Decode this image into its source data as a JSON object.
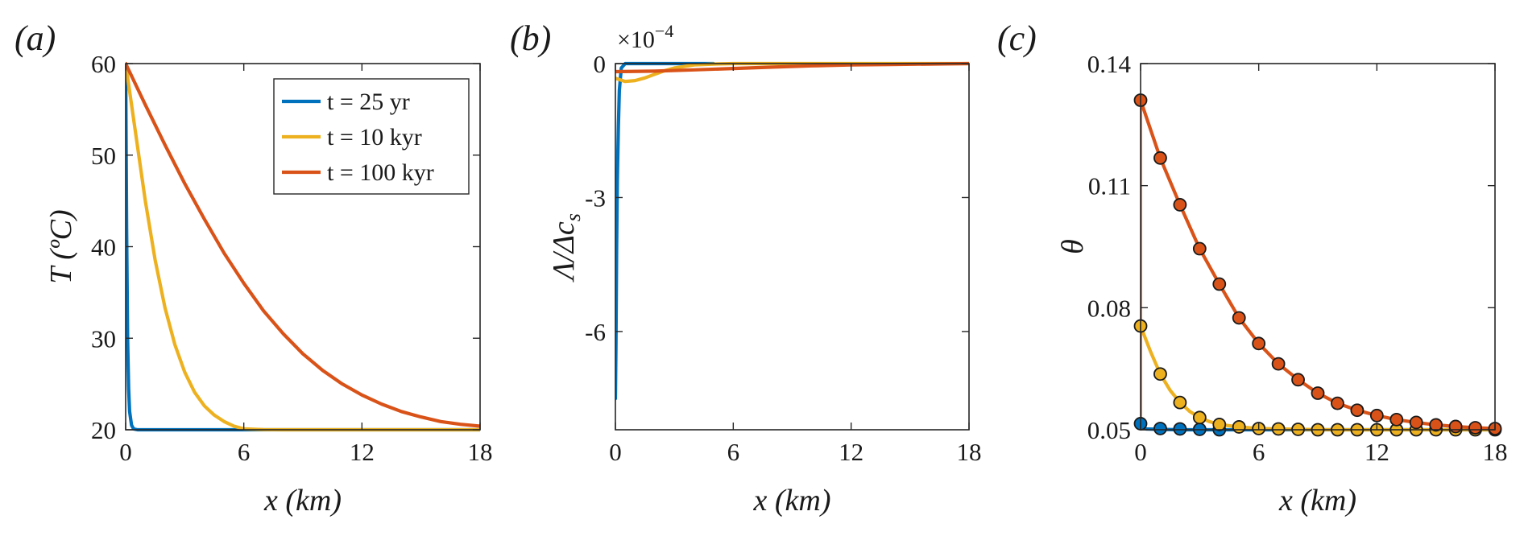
{
  "colors": {
    "blue": "#0072BD",
    "yellow": "#EDB120",
    "orange": "#D95319",
    "axis": "#262626"
  },
  "chart_data": [
    {
      "panel_label": "(a)",
      "type": "line",
      "xlabel": "x (km)",
      "ylabel": "T (ºC)",
      "xlim": [
        0,
        18
      ],
      "ylim": [
        20,
        60
      ],
      "xticks": [
        "0",
        "6",
        "12",
        "18"
      ],
      "yticks": [
        "20",
        "30",
        "40",
        "50",
        "60"
      ],
      "legend": {
        "placement": "top-right",
        "entries": [
          "t = 25 yr",
          "t = 10 kyr",
          "t = 100 kyr"
        ]
      },
      "series": [
        {
          "name": "t = 25 yr",
          "color": "#0072BD",
          "x": [
            0,
            0.05,
            0.1,
            0.15,
            0.2,
            0.3,
            0.4,
            0.6,
            1,
            18
          ],
          "y": [
            60,
            42,
            30,
            24.5,
            22,
            20.5,
            20.1,
            20,
            20,
            20
          ]
        },
        {
          "name": "t = 10 kyr",
          "color": "#EDB120",
          "x": [
            0,
            0.5,
            1,
            1.5,
            2,
            2.5,
            3,
            3.5,
            4,
            4.5,
            5,
            5.5,
            6,
            7,
            8,
            10,
            18
          ],
          "y": [
            60,
            52.5,
            45,
            38.5,
            33.3,
            29.3,
            26.3,
            24.1,
            22.6,
            21.6,
            20.9,
            20.4,
            20.1,
            20.02,
            20,
            20,
            20
          ]
        },
        {
          "name": "t = 100 kyr",
          "color": "#D95319",
          "x": [
            0,
            1,
            2,
            3,
            4,
            5,
            6,
            7,
            8,
            9,
            10,
            11,
            12,
            13,
            14,
            15,
            16,
            17,
            18
          ],
          "y": [
            60,
            55.5,
            51.1,
            46.9,
            43,
            39.3,
            36,
            33,
            30.5,
            28.3,
            26.5,
            25,
            23.8,
            22.8,
            22,
            21.4,
            20.9,
            20.6,
            20.4
          ]
        }
      ]
    },
    {
      "panel_label": "(b)",
      "type": "line",
      "xlabel": "x (km)",
      "ylabel": "Λ/Δc",
      "ylabel_sub": "s",
      "exponent_label": "×10",
      "exponent_power": "−4",
      "xlim": [
        0,
        18
      ],
      "ylim": [
        -8.2,
        0
      ],
      "xticks": [
        "0",
        "6",
        "12",
        "18"
      ],
      "yticks": [
        "0",
        "-3",
        "-6"
      ],
      "series": [
        {
          "name": "t = 25 yr",
          "color": "#0072BD",
          "x": [
            0,
            0.03,
            0.06,
            0.1,
            0.15,
            0.2,
            0.3,
            0.5,
            5
          ],
          "y": [
            -7.5,
            -6.3,
            -4.2,
            -2.6,
            -1.4,
            -0.6,
            -0.1,
            0,
            0
          ]
        },
        {
          "name": "t = 10 kyr",
          "color": "#EDB120",
          "x": [
            0,
            0.5,
            1,
            1.5,
            2,
            2.5,
            3,
            4,
            5,
            6,
            18
          ],
          "y": [
            -0.33,
            -0.4,
            -0.38,
            -0.32,
            -0.24,
            -0.16,
            -0.1,
            -0.03,
            -0.01,
            0,
            0
          ]
        },
        {
          "name": "t = 100 kyr",
          "color": "#D95319",
          "x": [
            0,
            2,
            4,
            6,
            8,
            10,
            12,
            14,
            16,
            18
          ],
          "y": [
            -0.18,
            -0.17,
            -0.14,
            -0.11,
            -0.08,
            -0.05,
            -0.03,
            -0.02,
            -0.01,
            0
          ]
        }
      ]
    },
    {
      "panel_label": "(c)",
      "type": "line",
      "xlabel": "x (km)",
      "ylabel": "θ",
      "xlim": [
        0,
        18
      ],
      "ylim": [
        0.05,
        0.14
      ],
      "xticks": [
        "0",
        "6",
        "12",
        "18"
      ],
      "yticks": [
        "0.05",
        "0.08",
        "0.11",
        "0.14"
      ],
      "series": [
        {
          "name": "t = 25 yr",
          "color": "#0072BD",
          "x": [
            0,
            0.1,
            0.3,
            1,
            2,
            4,
            18
          ],
          "y": [
            0.0515,
            0.0505,
            0.0502,
            0.0501,
            0.05,
            0.05,
            0.05
          ],
          "markers": {
            "x": [
              0,
              1,
              2,
              3,
              4
            ],
            "y": [
              0.0515,
              0.0503,
              0.0502,
              0.0501,
              0.05
            ]
          }
        },
        {
          "name": "t = 10 kyr",
          "color": "#EDB120",
          "x": [
            0,
            0.5,
            1,
            1.5,
            2,
            2.5,
            3,
            3.5,
            4,
            5,
            6,
            8,
            10,
            18
          ],
          "y": [
            0.0755,
            0.0693,
            0.0637,
            0.0597,
            0.0567,
            0.0545,
            0.053,
            0.052,
            0.0513,
            0.0507,
            0.0503,
            0.0501,
            0.05,
            0.05
          ],
          "markers": {
            "x": [
              0,
              1,
              2,
              3,
              4,
              5,
              6,
              7,
              8,
              9,
              10,
              11,
              12,
              13,
              14,
              15,
              16,
              17,
              18
            ],
            "y": [
              0.0755,
              0.0637,
              0.0567,
              0.053,
              0.0513,
              0.0507,
              0.0503,
              0.0502,
              0.0501,
              0.05,
              0.05,
              0.05,
              0.05,
              0.05,
              0.05,
              0.05,
              0.05,
              0.05,
              0.05
            ]
          }
        },
        {
          "name": "t = 100 kyr",
          "color": "#D95319",
          "x": [
            0,
            1,
            2,
            3,
            4,
            5,
            6,
            7,
            8,
            9,
            10,
            11,
            12,
            13,
            14,
            15,
            16,
            17,
            18
          ],
          "y": [
            0.131,
            0.1168,
            0.1053,
            0.0945,
            0.0858,
            0.0775,
            0.0712,
            0.0662,
            0.0623,
            0.059,
            0.0565,
            0.0548,
            0.0535,
            0.0525,
            0.0518,
            0.0512,
            0.0508,
            0.0505,
            0.0503
          ],
          "markers": {
            "x": [
              0,
              1,
              2,
              3,
              4,
              5,
              6,
              7,
              8,
              9,
              10,
              11,
              12,
              13,
              14,
              15,
              16,
              17,
              18
            ],
            "y": [
              0.131,
              0.1168,
              0.1053,
              0.0945,
              0.0858,
              0.0775,
              0.0712,
              0.0662,
              0.0623,
              0.059,
              0.0565,
              0.0548,
              0.0535,
              0.0525,
              0.0518,
              0.0512,
              0.0508,
              0.0505,
              0.0503
            ]
          },
          "vertical_segment": {
            "x": 0,
            "y": [
              0.05,
              0.131
            ]
          }
        }
      ]
    }
  ]
}
